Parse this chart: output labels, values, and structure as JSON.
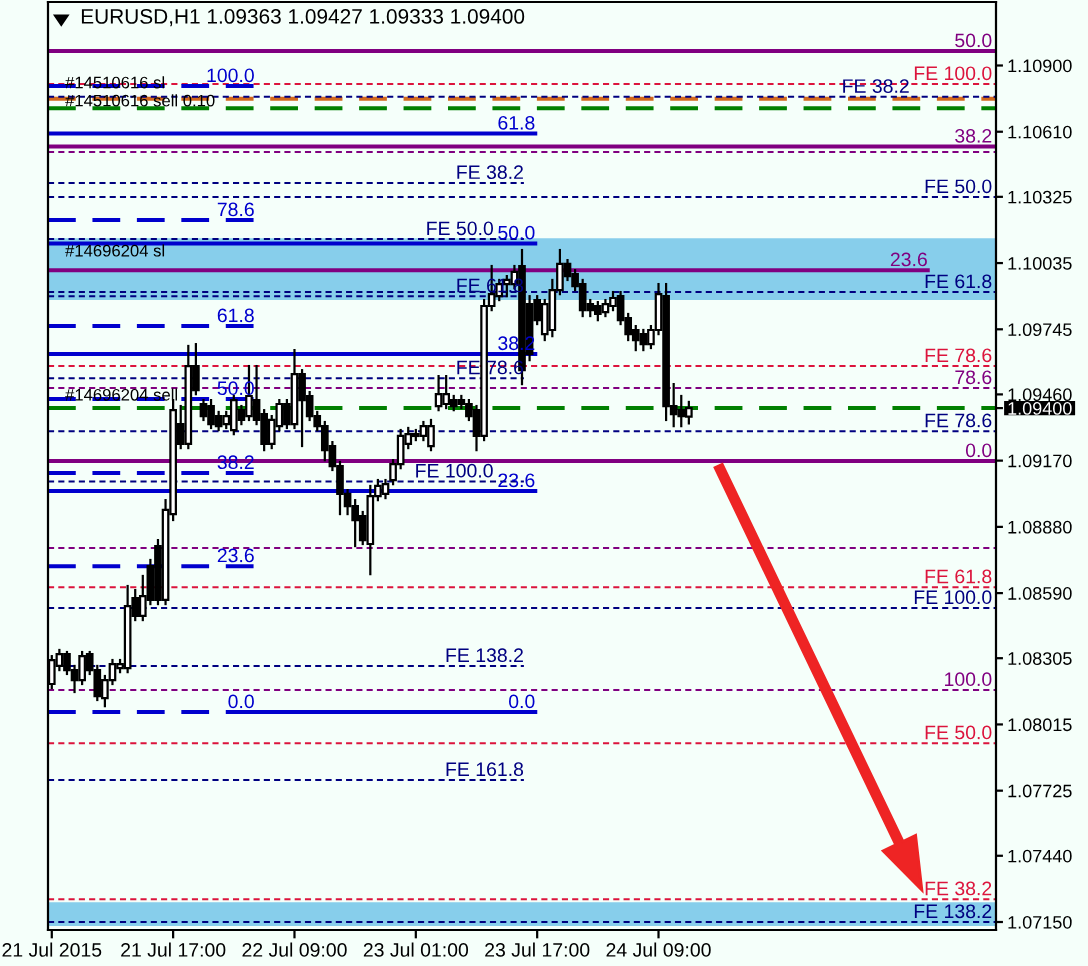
{
  "chart_data": {
    "type": "candlestick",
    "title": "EURUSD,H1 1.09363 1.09427 1.09333 1.09400",
    "x": [
      "2015-07-21T01:00",
      "2015-07-21T02:00",
      "2015-07-21T03:00",
      "2015-07-21T04:00",
      "2015-07-21T05:00",
      "2015-07-21T06:00",
      "2015-07-21T07:00",
      "2015-07-21T08:00",
      "2015-07-21T09:00",
      "2015-07-21T10:00",
      "2015-07-21T11:00",
      "2015-07-21T12:00",
      "2015-07-21T13:00",
      "2015-07-21T14:00",
      "2015-07-21T15:00",
      "2015-07-21T16:00",
      "2015-07-21T17:00",
      "2015-07-21T18:00",
      "2015-07-21T19:00",
      "2015-07-21T20:00",
      "2015-07-21T21:00",
      "2015-07-21T22:00",
      "2015-07-21T23:00",
      "2015-07-22T00:00",
      "2015-07-22T01:00",
      "2015-07-22T02:00",
      "2015-07-22T03:00",
      "2015-07-22T04:00",
      "2015-07-22T05:00",
      "2015-07-22T06:00",
      "2015-07-22T07:00",
      "2015-07-22T08:00",
      "2015-07-22T09:00",
      "2015-07-22T10:00",
      "2015-07-22T11:00",
      "2015-07-22T12:00",
      "2015-07-22T13:00",
      "2015-07-22T14:00",
      "2015-07-22T15:00",
      "2015-07-22T16:00",
      "2015-07-22T17:00",
      "2015-07-22T18:00",
      "2015-07-22T19:00",
      "2015-07-22T20:00",
      "2015-07-22T21:00",
      "2015-07-22T22:00",
      "2015-07-22T23:00",
      "2015-07-23T00:00",
      "2015-07-23T01:00",
      "2015-07-23T02:00",
      "2015-07-23T03:00",
      "2015-07-23T04:00",
      "2015-07-23T05:00",
      "2015-07-23T06:00",
      "2015-07-23T07:00",
      "2015-07-23T08:00",
      "2015-07-23T09:00",
      "2015-07-23T10:00",
      "2015-07-23T11:00",
      "2015-07-23T12:00",
      "2015-07-23T13:00",
      "2015-07-23T14:00",
      "2015-07-23T15:00",
      "2015-07-23T16:00",
      "2015-07-23T17:00",
      "2015-07-23T18:00",
      "2015-07-23T19:00",
      "2015-07-23T20:00",
      "2015-07-23T21:00",
      "2015-07-23T22:00",
      "2015-07-23T23:00",
      "2015-07-24T00:00",
      "2015-07-24T01:00",
      "2015-07-24T02:00",
      "2015-07-24T03:00",
      "2015-07-24T04:00",
      "2015-07-24T05:00",
      "2015-07-24T06:00",
      "2015-07-24T07:00",
      "2015-07-24T08:00",
      "2015-07-24T09:00",
      "2015-07-24T10:00",
      "2015-07-24T11:00",
      "2015-07-24T12:00",
      "2015-07-24T13:00"
    ],
    "ohlc": [
      [
        1.08192,
        1.08314,
        1.08174,
        1.08297
      ],
      [
        1.08271,
        1.08341,
        1.08253,
        1.08323
      ],
      [
        1.08323,
        1.08332,
        1.08236,
        1.08253
      ],
      [
        1.08253,
        1.08271,
        1.08157,
        1.08209
      ],
      [
        1.08209,
        1.08332,
        1.08192,
        1.08314
      ],
      [
        1.08323,
        1.08332,
        1.08236,
        1.08253
      ],
      [
        1.08253,
        1.08271,
        1.08122,
        1.08139
      ],
      [
        1.0813,
        1.08227,
        1.08095,
        1.08209
      ],
      [
        1.08209,
        1.08297,
        1.08192,
        1.08279
      ],
      [
        1.08262,
        1.08297,
        1.08244,
        1.08279
      ],
      [
        1.08262,
        1.08621,
        1.08244,
        1.08533
      ],
      [
        1.08568,
        1.08603,
        1.08472,
        1.0849
      ],
      [
        1.0849,
        1.08665,
        1.08472,
        1.08577
      ],
      [
        1.08708,
        1.08735,
        1.08542,
        1.0856
      ],
      [
        1.08796,
        1.08822,
        1.08542,
        1.0856
      ],
      [
        1.0856,
        1.08997,
        1.08542,
        1.08954
      ],
      [
        1.08936,
        1.09435,
        1.0891,
        1.09391
      ],
      [
        1.0933,
        1.09409,
        1.09225,
        1.09243
      ],
      [
        1.09243,
        1.09672,
        1.09225,
        1.09584
      ],
      [
        1.09584,
        1.0968,
        1.09461,
        1.09479
      ],
      [
        1.09418,
        1.09435,
        1.09348,
        1.09365
      ],
      [
        1.09409,
        1.09435,
        1.09313,
        1.0933
      ],
      [
        1.09365,
        1.09383,
        1.09304,
        1.09321
      ],
      [
        1.0933,
        1.09383,
        1.09313,
        1.09365
      ],
      [
        1.09304,
        1.09453,
        1.09286,
        1.09435
      ],
      [
        1.09391,
        1.09409,
        1.0933,
        1.09348
      ],
      [
        1.09365,
        1.09584,
        1.09348,
        1.09453
      ],
      [
        1.09435,
        1.09584,
        1.0933,
        1.09348
      ],
      [
        1.09374,
        1.09391,
        1.09216,
        1.09243
      ],
      [
        1.09243,
        1.09365,
        1.09225,
        1.09348
      ],
      [
        1.09321,
        1.09435,
        1.09304,
        1.09418
      ],
      [
        1.09418,
        1.09435,
        1.09313,
        1.0933
      ],
      [
        1.0933,
        1.09654,
        1.09313,
        1.09549
      ],
      [
        1.09549,
        1.09566,
        1.09234,
        1.09435
      ],
      [
        1.09453,
        1.0947,
        1.09348,
        1.09365
      ],
      [
        1.09365,
        1.09383,
        1.09304,
        1.09321
      ],
      [
        1.09321,
        1.09339,
        1.09172,
        1.09216
      ],
      [
        1.09234,
        1.09251,
        1.09129,
        1.09146
      ],
      [
        1.09146,
        1.09164,
        1.08936,
        1.09024
      ],
      [
        1.09024,
        1.09041,
        1.08936,
        1.08971
      ],
      [
        1.08971,
        1.08997,
        1.08796,
        1.0891
      ],
      [
        1.08927,
        1.08945,
        1.08805,
        1.08822
      ],
      [
        1.08805,
        1.09059,
        1.08673,
        1.09015
      ],
      [
        1.09015,
        1.09085,
        1.08997,
        1.09059
      ],
      [
        1.09024,
        1.09085,
        1.09006,
        1.09067
      ],
      [
        1.09085,
        1.09172,
        1.09067,
        1.09155
      ],
      [
        1.09155,
        1.09304,
        1.09137,
        1.09278
      ],
      [
        1.09243,
        1.09313,
        1.09225,
        1.09286
      ],
      [
        1.09286,
        1.09304,
        1.0926,
        1.09278
      ],
      [
        1.09278,
        1.09339,
        1.0926,
        1.09321
      ],
      [
        1.09234,
        1.09348,
        1.09216,
        1.09321
      ],
      [
        1.09409,
        1.0954,
        1.09391,
        1.09461
      ],
      [
        1.09418,
        1.0954,
        1.094,
        1.09461
      ],
      [
        1.09435,
        1.09453,
        1.09391,
        1.09409
      ],
      [
        1.09435,
        1.09453,
        1.094,
        1.09418
      ],
      [
        1.09418,
        1.09435,
        1.09348,
        1.09365
      ],
      [
        1.09391,
        1.09409,
        1.09216,
        1.09278
      ],
      [
        1.09278,
        1.09873,
        1.0926,
        1.09847
      ],
      [
        1.09847,
        1.10022,
        1.09829,
        1.09899
      ],
      [
        1.0989,
        1.09961,
        1.09873,
        1.09943
      ],
      [
        1.09943,
        1.09978,
        1.0989,
        1.09961
      ],
      [
        1.09943,
        1.10022,
        1.09925,
        1.09996
      ],
      [
        1.10022,
        1.10092,
        1.09505,
        1.09566
      ],
      [
        1.09855,
        1.0989,
        1.0961,
        1.09637
      ],
      [
        1.09873,
        1.0989,
        1.09768,
        1.09785
      ],
      [
        1.09724,
        1.09873,
        1.09698,
        1.09855
      ],
      [
        1.09742,
        1.09961,
        1.09715,
        1.09917
      ],
      [
        1.09917,
        1.10092,
        1.09899,
        1.10031
      ],
      [
        1.10031,
        1.10048,
        1.09961,
        1.09978
      ],
      [
        1.09987,
        1.10004,
        1.09917,
        1.09934
      ],
      [
        1.09943,
        1.09961,
        1.09803,
        1.09829
      ],
      [
        1.09855,
        1.09873,
        1.09803,
        1.09829
      ],
      [
        1.09847,
        1.09864,
        1.09785,
        1.09812
      ],
      [
        1.0982,
        1.09873,
        1.09803,
        1.09855
      ],
      [
        1.09847,
        1.09908,
        1.09829,
        1.09882
      ],
      [
        1.0989,
        1.09908,
        1.09768,
        1.09785
      ],
      [
        1.09794,
        1.09812,
        1.09698,
        1.09724
      ],
      [
        1.09742,
        1.09759,
        1.09654,
        1.09698
      ],
      [
        1.09724,
        1.09742,
        1.09654,
        1.0968
      ],
      [
        1.0968,
        1.09759,
        1.09663,
        1.09742
      ],
      [
        1.09742,
        1.09943,
        1.09724,
        1.09899
      ],
      [
        1.0989,
        1.09943,
        1.09348,
        1.09409
      ],
      [
        1.09409,
        1.09505,
        1.09321,
        1.09374
      ],
      [
        1.09391,
        1.09453,
        1.09321,
        1.09365
      ],
      [
        1.09363,
        1.09427,
        1.09333,
        1.094
      ]
    ],
    "xlim": [
      "2015-07-21T00:30",
      "2015-07-26T05:30"
    ],
    "xticks": [
      {
        "value": "2015-07-21T01:00",
        "label": "21 Jul 2015"
      },
      {
        "value": "2015-07-21T17:00",
        "label": "21 Jul 17:00"
      },
      {
        "value": "2015-07-22T09:00",
        "label": "22 Jul 09:00"
      },
      {
        "value": "2015-07-23T01:00",
        "label": "23 Jul 01:00"
      },
      {
        "value": "2015-07-23T17:00",
        "label": "23 Jul 17:00"
      },
      {
        "value": "2015-07-24T09:00",
        "label": "24 Jul 09:00"
      }
    ],
    "ylim": [
      1.07115,
      1.11178
    ],
    "yticks": [
      {
        "value": 1.109,
        "label": "1.10900"
      },
      {
        "value": 1.1061,
        "label": "1.10610"
      },
      {
        "value": 1.10325,
        "label": "1.10325"
      },
      {
        "value": 1.10035,
        "label": "1.10035"
      },
      {
        "value": 1.09745,
        "label": "1.09745"
      },
      {
        "value": 1.0946,
        "label": "1.09460"
      },
      {
        "value": 1.094,
        "label": "1.09400"
      },
      {
        "value": 1.0917,
        "label": "1.09170"
      },
      {
        "value": 1.0888,
        "label": "1.08880"
      },
      {
        "value": 1.0859,
        "label": "1.08590"
      },
      {
        "value": 1.08305,
        "label": "1.08305"
      },
      {
        "value": 1.08015,
        "label": "1.08015"
      },
      {
        "value": 1.07725,
        "label": "1.07725"
      },
      {
        "value": 1.0744,
        "label": "1.07440"
      },
      {
        "value": 1.0715,
        "label": "1.07150"
      }
    ],
    "bands": [
      {
        "axis": "y",
        "from": 1.09873,
        "to": 1.10144,
        "color": "#87ceeb"
      },
      {
        "axis": "y",
        "from": 1.07132,
        "to": 1.07237,
        "color": "#87ceeb"
      }
    ],
    "ref_lines": [
      {
        "axis": "y",
        "value": 1.10521,
        "color": "#800080",
        "line_style": "dotted"
      },
      {
        "axis": "y",
        "value": 1.08787,
        "color": "#800080",
        "line_style": "dotted"
      },
      {
        "axis": "y",
        "value": 1.10819,
        "label": "FE 100.0",
        "color": "#dc143c",
        "line_style": "dotted"
      },
      {
        "axis": "y",
        "value": 1.09584,
        "label": "FE 78.6",
        "color": "#dc143c",
        "line_style": "dotted"
      },
      {
        "axis": "y",
        "value": 1.08616,
        "label": "FE 61.8",
        "color": "#dc143c",
        "line_style": "dotted"
      },
      {
        "axis": "y",
        "value": 1.07933,
        "label": "FE 50.0",
        "color": "#dc143c",
        "line_style": "dotted"
      },
      {
        "axis": "y",
        "value": 1.0725,
        "label": "FE 38.2",
        "color": "#dc143c",
        "line_style": "dotted"
      },
      {
        "axis": "y",
        "value": 1.10754,
        "color": "#d2691e",
        "line_style": "dashed"
      },
      {
        "axis": "y",
        "value": 1.10713,
        "color": "#008000",
        "line_style": "dashed"
      },
      {
        "axis": "y",
        "value": 1.094,
        "color": "#008000",
        "line_style": "dashed"
      },
      {
        "axis": "y",
        "value": 1.10763,
        "label": "FE 38.2",
        "color": "#000080",
        "line_style": "dotted"
      },
      {
        "axis": "y",
        "value": 1.10324,
        "label": "FE 50.0",
        "color": "#000080",
        "line_style": "dotted"
      },
      {
        "axis": "y",
        "value": 1.09908,
        "label": "FE 61.8",
        "color": "#000080",
        "line_style": "dotted"
      },
      {
        "axis": "y",
        "value": 1.09299,
        "label": "FE 78.6",
        "color": "#000080",
        "line_style": "dotted"
      },
      {
        "axis": "y",
        "value": 1.08525,
        "label": "FE 100.0",
        "color": "#000080",
        "line_style": "dotted"
      },
      {
        "axis": "y",
        "value": 1.0715,
        "label": "FE 138.2",
        "color": "#000080",
        "line_style": "dotted"
      }
    ],
    "series": [
      {
        "type": "line",
        "name": "50.0",
        "color": "#800080",
        "line_style": "solid",
        "x": [
          "2015-07-21T00:30",
          "2015-07-26T05:30"
        ],
        "values": [
          1.10963,
          1.10963
        ]
      },
      {
        "type": "line",
        "name": "38.2",
        "color": "#800080",
        "line_style": "solid",
        "x": [
          "2015-07-21T00:30",
          "2015-07-26T05:30"
        ],
        "values": [
          1.10545,
          1.10545
        ]
      },
      {
        "type": "line",
        "name": "23.6",
        "color": "#800080",
        "line_style": "solid",
        "x": [
          "2015-07-21T00:30",
          "2015-07-25T20:30"
        ],
        "values": [
          1.10004,
          1.10004
        ]
      },
      {
        "type": "line",
        "name": "0.0",
        "color": "#800080",
        "line_style": "solid",
        "x": [
          "2015-07-21T00:30",
          "2015-07-26T05:30"
        ],
        "values": [
          1.09168,
          1.09168
        ]
      },
      {
        "type": "line",
        "name": "78.6",
        "color": "#800080",
        "line_style": "dotted",
        "x": [
          "2015-07-21T00:30",
          "2015-07-26T05:30"
        ],
        "values": [
          1.09488,
          1.09488
        ]
      },
      {
        "type": "line",
        "name": "100.0",
        "color": "#800080",
        "line_style": "dotted",
        "x": [
          "2015-07-21T00:30",
          "2015-07-26T05:30"
        ],
        "values": [
          1.08166,
          1.08166
        ]
      },
      {
        "type": "line",
        "name": "61.8",
        "color": "#0000cd",
        "line_style": "solid",
        "x": [
          "2015-07-21T00:30",
          "2015-07-23T16:45"
        ],
        "values": [
          1.10602,
          1.10602
        ]
      },
      {
        "type": "line",
        "name": "50.0",
        "color": "#0000cd",
        "line_style": "solid",
        "x": [
          "2015-07-21T00:30",
          "2015-07-23T16:45"
        ],
        "values": [
          1.10121,
          1.10121
        ]
      },
      {
        "type": "line",
        "name": "38.2",
        "color": "#0000cd",
        "line_style": "solid",
        "x": [
          "2015-07-21T00:30",
          "2015-07-23T16:45"
        ],
        "values": [
          1.09637,
          1.09637
        ]
      },
      {
        "type": "line",
        "name": "23.6",
        "color": "#0000cd",
        "line_style": "solid",
        "x": [
          "2015-07-21T00:30",
          "2015-07-23T16:45"
        ],
        "values": [
          1.09037,
          1.09037
        ]
      },
      {
        "type": "line",
        "name": "0.0",
        "color": "#0000cd",
        "line_style": "solid",
        "x": [
          "2015-07-22T03:45",
          "2015-07-23T16:45"
        ],
        "values": [
          1.08069,
          1.08069
        ]
      },
      {
        "type": "line",
        "name": "100.0",
        "color": "#0000cd",
        "line_style": "dashed",
        "x": [
          "2015-07-21T00:30",
          "2015-07-22T03:45"
        ],
        "values": [
          1.1081,
          1.1081
        ]
      },
      {
        "type": "line",
        "name": "78.6",
        "color": "#0000cd",
        "line_style": "dashed",
        "x": [
          "2015-07-21T00:30",
          "2015-07-22T03:45"
        ],
        "values": [
          1.10223,
          1.10223
        ]
      },
      {
        "type": "line",
        "name": "61.8",
        "color": "#0000cd",
        "line_style": "dashed",
        "x": [
          "2015-07-21T00:30",
          "2015-07-22T03:45"
        ],
        "values": [
          1.09759,
          1.09759
        ]
      },
      {
        "type": "line",
        "name": "50.0",
        "color": "#0000cd",
        "line_style": "dashed",
        "x": [
          "2015-07-21T00:30",
          "2015-07-22T03:45"
        ],
        "values": [
          1.0944,
          1.0944
        ]
      },
      {
        "type": "line",
        "name": "38.2",
        "color": "#0000cd",
        "line_style": "dashed",
        "x": [
          "2015-07-21T00:30",
          "2015-07-22T03:45"
        ],
        "values": [
          1.09116,
          1.09116
        ]
      },
      {
        "type": "line",
        "name": "23.6",
        "color": "#0000cd",
        "line_style": "dashed",
        "x": [
          "2015-07-21T00:30",
          "2015-07-22T03:45"
        ],
        "values": [
          1.08708,
          1.08708
        ]
      },
      {
        "type": "line",
        "name": "0.0",
        "color": "#0000cd",
        "line_style": "dashed",
        "x": [
          "2015-07-21T00:30",
          "2015-07-22T03:45"
        ],
        "values": [
          1.08069,
          1.08069
        ]
      },
      {
        "type": "line",
        "name": "FE 38.2",
        "color": "#000080",
        "line_style": "dotted",
        "x": [
          "2015-07-21T00:30",
          "2015-07-23T15:15"
        ],
        "values": [
          1.10386,
          1.10386
        ]
      },
      {
        "type": "line",
        "name": "FE 50.0",
        "color": "#000080",
        "line_style": "dotted",
        "x": [
          "2015-07-21T00:30",
          "2015-07-23T15:15"
        ],
        "values": [
          1.1014,
          1.1014
        ]
      },
      {
        "type": "line",
        "name": "FE 61.8",
        "color": "#000080",
        "line_style": "dotted",
        "x": [
          "2015-07-21T00:30",
          "2015-07-23T15:15"
        ],
        "values": [
          1.0989,
          1.0989
        ]
      },
      {
        "type": "line",
        "name": "FE 78.6",
        "color": "#000080",
        "line_style": "dotted",
        "x": [
          "2015-07-21T00:30",
          "2015-07-23T15:15"
        ],
        "values": [
          1.09531,
          1.09531
        ]
      },
      {
        "type": "line",
        "name": "FE 100.0",
        "color": "#000080",
        "line_style": "dotted",
        "x": [
          "2015-07-21T00:30",
          "2015-07-23T15:15"
        ],
        "values": [
          1.09079,
          1.09079
        ]
      },
      {
        "type": "line",
        "name": "FE 138.2",
        "color": "#000080",
        "line_style": "dotted",
        "x": [
          "2015-07-21T00:30",
          "2015-07-23T15:15"
        ],
        "values": [
          1.08271,
          1.08271
        ]
      },
      {
        "type": "line",
        "name": "FE 161.8",
        "color": "#000080",
        "line_style": "dotted",
        "x": [
          "2015-07-21T00:30",
          "2015-07-23T15:15"
        ],
        "values": [
          1.07772,
          1.07772
        ]
      }
    ],
    "annotations": [
      {
        "text": "#14510616 sl",
        "x": "2015-07-21T02:45",
        "y": 1.10819
      },
      {
        "text": "#14510616 sell 0.10",
        "x": "2015-07-21T02:45",
        "y": 1.1074
      },
      {
        "text": "#14696204 sl",
        "x": "2015-07-21T02:45",
        "y": 1.10083
      },
      {
        "text": "#14696204 sell",
        "x": "2015-07-21T02:45",
        "y": 1.09452
      }
    ]
  }
}
